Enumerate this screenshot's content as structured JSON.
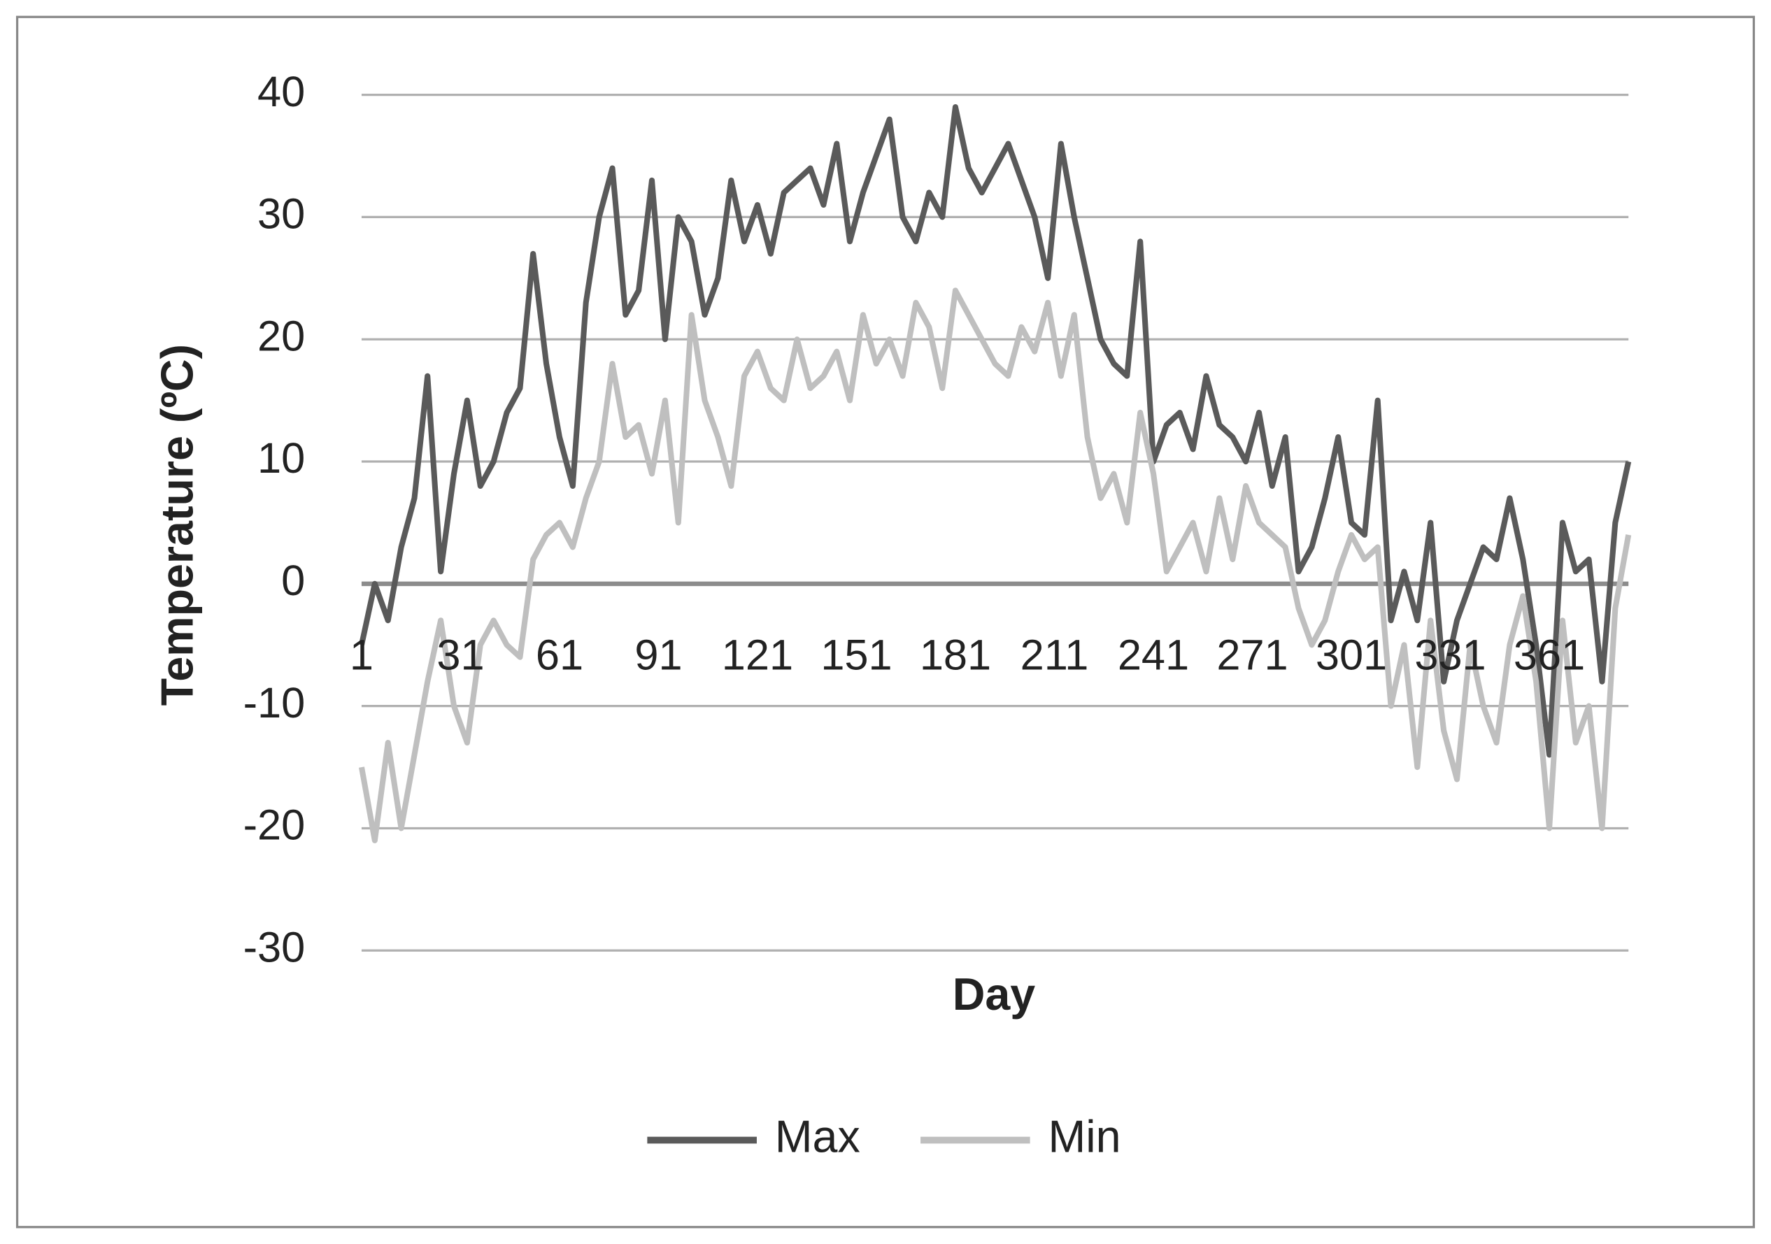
{
  "chart_data": {
    "type": "line",
    "x_label": "Day",
    "y_label": "Temperature (ºC)",
    "xlim": [
      1,
      385
    ],
    "xticks": [
      1,
      31,
      61,
      91,
      121,
      151,
      181,
      211,
      241,
      271,
      301,
      331,
      361
    ],
    "ylim": [
      -30,
      40
    ],
    "yticks": [
      -30,
      -20,
      -10,
      0,
      10,
      20,
      30,
      40
    ],
    "grid": true,
    "legend": "bottom",
    "x": [
      1,
      5,
      9,
      13,
      17,
      21,
      25,
      29,
      33,
      37,
      41,
      45,
      49,
      53,
      57,
      61,
      65,
      69,
      73,
      77,
      81,
      85,
      89,
      93,
      97,
      101,
      105,
      109,
      113,
      117,
      121,
      125,
      129,
      133,
      137,
      141,
      145,
      149,
      153,
      157,
      161,
      165,
      169,
      173,
      177,
      181,
      185,
      189,
      193,
      197,
      201,
      205,
      209,
      213,
      217,
      221,
      225,
      229,
      233,
      237,
      241,
      245,
      249,
      253,
      257,
      261,
      265,
      269,
      273,
      277,
      281,
      285,
      289,
      293,
      297,
      301,
      305,
      309,
      313,
      317,
      321,
      325,
      329,
      333,
      337,
      341,
      345,
      349,
      353,
      357,
      361,
      365,
      369,
      373,
      377,
      381,
      385
    ],
    "series": [
      {
        "name": "Max",
        "color": "#5a5a5a",
        "values": [
          -5,
          0,
          -3,
          3,
          7,
          17,
          1,
          9,
          15,
          8,
          10,
          14,
          16,
          27,
          18,
          12,
          8,
          23,
          30,
          34,
          22,
          24,
          33,
          20,
          30,
          28,
          22,
          25,
          33,
          28,
          31,
          27,
          32,
          33,
          34,
          31,
          36,
          28,
          32,
          35,
          38,
          30,
          28,
          32,
          30,
          39,
          34,
          32,
          34,
          36,
          33,
          30,
          25,
          36,
          30,
          25,
          20,
          18,
          17,
          28,
          10,
          13,
          14,
          11,
          17,
          13,
          12,
          10,
          14,
          8,
          12,
          1,
          3,
          7,
          12,
          5,
          4,
          15,
          -3,
          1,
          -3,
          5,
          -8,
          -3,
          0,
          3,
          2,
          7,
          2,
          -5,
          -14,
          5,
          1,
          2,
          -8,
          5,
          10
        ]
      },
      {
        "name": "Min",
        "color": "#bfbfbf",
        "values": [
          -15,
          -21,
          -13,
          -20,
          -14,
          -8,
          -3,
          -10,
          -13,
          -5,
          -3,
          -5,
          -6,
          2,
          4,
          5,
          3,
          7,
          10,
          18,
          12,
          13,
          9,
          15,
          5,
          22,
          15,
          12,
          8,
          17,
          19,
          16,
          15,
          20,
          16,
          17,
          19,
          15,
          22,
          18,
          20,
          17,
          23,
          21,
          16,
          24,
          22,
          20,
          18,
          17,
          21,
          19,
          23,
          17,
          22,
          12,
          7,
          9,
          5,
          14,
          9,
          1,
          3,
          5,
          1,
          7,
          2,
          8,
          5,
          4,
          3,
          -2,
          -5,
          -3,
          1,
          4,
          2,
          3,
          -10,
          -5,
          -15,
          -3,
          -12,
          -16,
          -5,
          -10,
          -13,
          -5,
          -1,
          -8,
          -20,
          -3,
          -13,
          -10,
          -20,
          -2,
          4
        ]
      }
    ]
  }
}
